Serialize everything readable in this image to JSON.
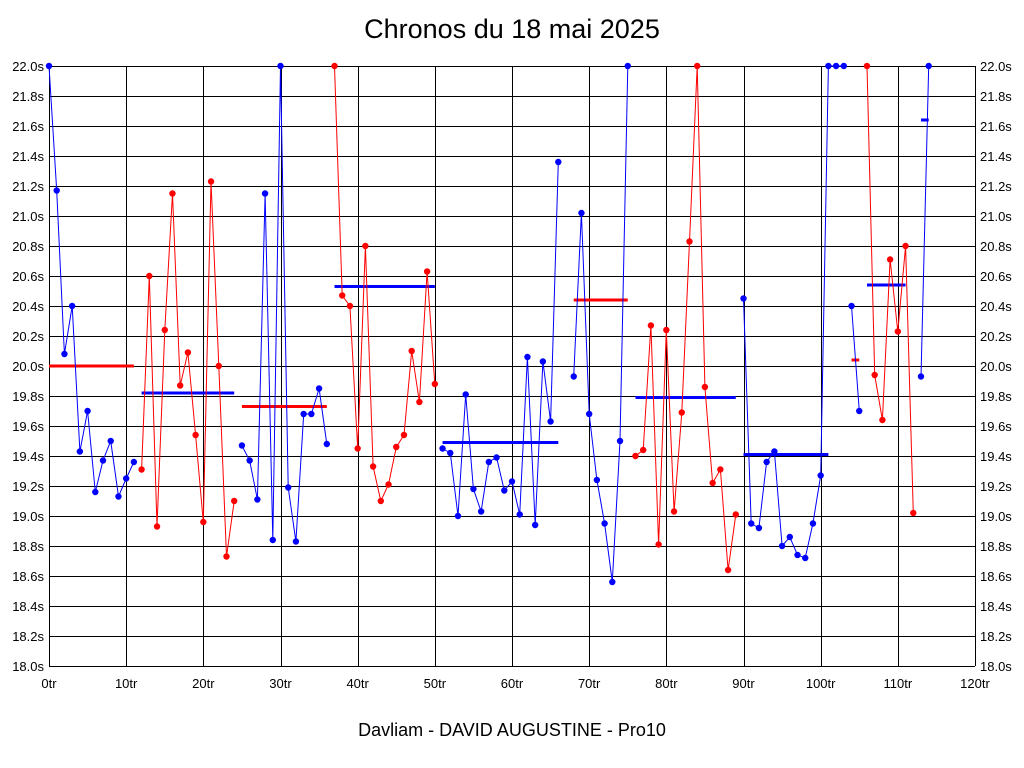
{
  "chart_data": {
    "type": "line",
    "title": "Chronos du 18 mai 2025",
    "footer": "Davliam - DAVID AUGUSTINE - Pro10",
    "x_ticks": [
      "0tr",
      "10tr",
      "20tr",
      "30tr",
      "40tr",
      "50tr",
      "60tr",
      "70tr",
      "80tr",
      "90tr",
      "100tr",
      "110tr",
      "120tr"
    ],
    "y_ticks": [
      "18.0s",
      "18.2s",
      "18.4s",
      "18.6s",
      "18.8s",
      "19.0s",
      "19.2s",
      "19.4s",
      "19.6s",
      "19.8s",
      "20.0s",
      "20.2s",
      "20.4s",
      "20.6s",
      "20.8s",
      "21.0s",
      "21.2s",
      "21.4s",
      "21.6s",
      "21.8s",
      "22.0s"
    ],
    "xlim": [
      0,
      120
    ],
    "ylim": [
      18.0,
      22.0
    ],
    "grid": true,
    "colors": {
      "blue": "#0000ff",
      "red": "#ff0000"
    },
    "series": [
      {
        "color": "blue",
        "points": [
          [
            0,
            22.0
          ],
          [
            1,
            21.17
          ],
          [
            2,
            20.08
          ],
          [
            3,
            20.4
          ],
          [
            4,
            19.43
          ],
          [
            5,
            19.7
          ],
          [
            6,
            19.16
          ],
          [
            7,
            19.37
          ],
          [
            8,
            19.5
          ],
          [
            9,
            19.13
          ],
          [
            10,
            19.25
          ],
          [
            11,
            19.36
          ]
        ],
        "mean": 19.82,
        "mean_range": [
          12,
          24
        ]
      },
      {
        "color": "red",
        "points": [
          [
            12,
            19.31
          ],
          [
            13,
            20.6
          ],
          [
            14,
            18.93
          ],
          [
            15,
            20.24
          ],
          [
            16,
            21.15
          ],
          [
            17,
            19.87
          ],
          [
            18,
            20.09
          ],
          [
            19,
            19.54
          ],
          [
            20,
            18.96
          ],
          [
            21,
            21.23
          ],
          [
            22,
            20.0
          ],
          [
            23,
            18.73
          ],
          [
            24,
            19.1
          ]
        ],
        "mean": 20.0,
        "mean_range": [
          0,
          11
        ]
      },
      {
        "color": "blue",
        "points": [
          [
            25,
            19.47
          ],
          [
            26,
            19.37
          ],
          [
            27,
            19.11
          ],
          [
            28,
            21.15
          ],
          [
            29,
            18.84
          ],
          [
            30,
            22.0
          ],
          [
            31,
            19.19
          ],
          [
            32,
            18.83
          ],
          [
            33,
            19.68
          ],
          [
            34,
            19.68
          ],
          [
            35,
            19.85
          ],
          [
            36,
            19.48
          ]
        ],
        "mean": 20.53,
        "mean_range": [
          37,
          50
        ]
      },
      {
        "color": "red",
        "points": [
          [
            37,
            22.0
          ],
          [
            38,
            20.47
          ],
          [
            39,
            20.4
          ],
          [
            40,
            19.45
          ],
          [
            41,
            20.8
          ],
          [
            42,
            19.33
          ],
          [
            43,
            19.1
          ],
          [
            44,
            19.21
          ],
          [
            45,
            19.46
          ],
          [
            46,
            19.54
          ],
          [
            47,
            20.1
          ],
          [
            48,
            19.76
          ],
          [
            49,
            20.63
          ],
          [
            50,
            19.88
          ]
        ],
        "mean": 19.73,
        "mean_range": [
          25,
          36
        ]
      },
      {
        "color": "blue",
        "points": [
          [
            51,
            19.45
          ],
          [
            52,
            19.42
          ],
          [
            53,
            19.0
          ],
          [
            54,
            19.81
          ],
          [
            55,
            19.18
          ],
          [
            56,
            19.03
          ],
          [
            57,
            19.36
          ],
          [
            58,
            19.39
          ],
          [
            59,
            19.17
          ],
          [
            60,
            19.23
          ],
          [
            61,
            19.01
          ],
          [
            62,
            20.06
          ],
          [
            63,
            18.94
          ],
          [
            64,
            20.03
          ],
          [
            65,
            19.63
          ],
          [
            66,
            21.36
          ]
        ],
        "mean": 19.49,
        "mean_range": [
          51,
          66
        ]
      },
      {
        "color": "blue",
        "points": [
          [
            68,
            19.93
          ],
          [
            69,
            21.02
          ],
          [
            70,
            19.68
          ],
          [
            71,
            19.24
          ],
          [
            72,
            18.95
          ],
          [
            73,
            18.56
          ],
          [
            74,
            19.5
          ],
          [
            75,
            22.0
          ]
        ],
        "mean": 19.79,
        "mean_range": [
          76,
          89
        ]
      },
      {
        "color": "red",
        "points": [
          [
            76,
            19.4
          ],
          [
            77,
            19.44
          ],
          [
            78,
            20.27
          ],
          [
            79,
            18.81
          ],
          [
            80,
            20.24
          ],
          [
            81,
            19.03
          ],
          [
            82,
            19.69
          ],
          [
            83,
            20.83
          ],
          [
            84,
            22.0
          ],
          [
            85,
            19.86
          ],
          [
            86,
            19.22
          ],
          [
            87,
            19.31
          ],
          [
            88,
            18.64
          ],
          [
            89,
            19.01
          ]
        ],
        "mean": 20.44,
        "mean_range": [
          68,
          75
        ]
      },
      {
        "color": "blue",
        "points": [
          [
            90,
            20.45
          ],
          [
            91,
            18.95
          ],
          [
            92,
            18.92
          ],
          [
            93,
            19.36
          ],
          [
            94,
            19.43
          ],
          [
            95,
            18.8
          ],
          [
            96,
            18.86
          ],
          [
            97,
            18.74
          ],
          [
            98,
            18.72
          ],
          [
            99,
            18.95
          ],
          [
            100,
            19.27
          ],
          [
            101,
            22.0
          ],
          [
            102,
            22.0
          ],
          [
            103,
            22.0
          ]
        ],
        "mean": 19.41,
        "mean_range": [
          90,
          101
        ]
      },
      {
        "color": "blue",
        "points": [
          [
            104,
            20.4
          ],
          [
            105,
            19.7
          ]
        ],
        "mean": 20.54,
        "mean_range": [
          106,
          111
        ]
      },
      {
        "color": "red",
        "points": [
          [
            106,
            22.0
          ],
          [
            107,
            19.94
          ],
          [
            108,
            19.64
          ],
          [
            109,
            20.71
          ],
          [
            110,
            20.23
          ],
          [
            111,
            20.8
          ],
          [
            112,
            19.02
          ]
        ],
        "mean": 20.04,
        "mean_range": [
          104,
          105
        ]
      },
      {
        "color": "blue",
        "points": [
          [
            113,
            19.93
          ],
          [
            114,
            22.0
          ]
        ],
        "mean": 21.64,
        "mean_range": [
          113,
          114
        ]
      }
    ]
  }
}
